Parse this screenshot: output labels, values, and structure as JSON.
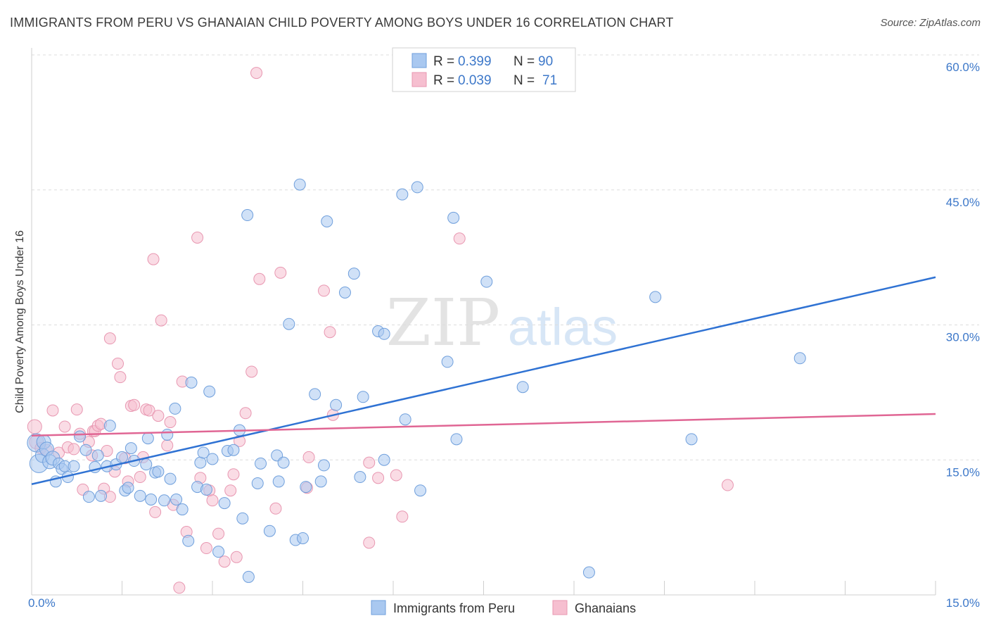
{
  "title": "IMMIGRANTS FROM PERU VS GHANAIAN CHILD POVERTY AMONG BOYS UNDER 16 CORRELATION CHART",
  "source": "Source: ZipAtlas.com",
  "watermark": {
    "zip": "ZIP",
    "atlas": "atlas"
  },
  "legend_top": {
    "rows": [
      {
        "r_label": "R =",
        "r_value": "0.399",
        "n_label": "N =",
        "n_value": "90"
      },
      {
        "r_label": "R =",
        "r_value": "0.039",
        "n_label": "N =",
        "n_value": "71"
      }
    ]
  },
  "legend_bottom": {
    "series1": "Immigrants from Peru",
    "series2": "Ghanaians"
  },
  "colors": {
    "blue_fill": "#a9c8f0",
    "blue_stroke": "#6f9fdc",
    "blue_line": "#2f72d3",
    "pink_fill": "#f6bfd0",
    "pink_stroke": "#e897b1",
    "pink_line": "#e06694",
    "axis_label": "#3d78c9",
    "grid": "#dddddd"
  },
  "chart_data": {
    "type": "scatter",
    "title": "IMMIGRANTS FROM PERU VS GHANAIAN CHILD POVERTY AMONG BOYS UNDER 16 CORRELATION CHART",
    "xlabel": "",
    "ylabel": "Child Poverty Among Boys Under 16",
    "xlim": [
      0,
      15
    ],
    "ylim": [
      0,
      60
    ],
    "x_tick_labels": [
      "0.0%",
      "15.0%"
    ],
    "y_ticks": [
      15,
      30,
      45,
      60
    ],
    "y_tick_labels": [
      "15.0%",
      "30.0%",
      "45.0%",
      "60.0%"
    ],
    "series": [
      {
        "name": "Immigrants from Peru",
        "r": 0.399,
        "n": 90,
        "trend": {
          "x": [
            0,
            15
          ],
          "y": [
            12.3,
            35.3
          ]
        },
        "points": [
          [
            0.08,
            16.9,
            3
          ],
          [
            0.12,
            14.6,
            3
          ],
          [
            0.18,
            15.5,
            2
          ],
          [
            0.2,
            17.0,
            2
          ],
          [
            0.25,
            16.2,
            2
          ],
          [
            0.3,
            14.8,
            2
          ],
          [
            0.35,
            15.2,
            2
          ],
          [
            0.4,
            12.6,
            1
          ],
          [
            0.45,
            14.6,
            1
          ],
          [
            0.5,
            14.0,
            1
          ],
          [
            0.55,
            14.3,
            1
          ],
          [
            0.6,
            13.1,
            1
          ],
          [
            0.7,
            14.3,
            1
          ],
          [
            0.8,
            17.6,
            1
          ],
          [
            0.9,
            16.1,
            1
          ],
          [
            0.95,
            10.9,
            1
          ],
          [
            1.05,
            14.2,
            1
          ],
          [
            1.1,
            15.5,
            1
          ],
          [
            1.15,
            11.0,
            1
          ],
          [
            1.25,
            14.3,
            1
          ],
          [
            1.3,
            18.8,
            1
          ],
          [
            1.4,
            14.5,
            1
          ],
          [
            1.5,
            15.3,
            1
          ],
          [
            1.55,
            11.6,
            1
          ],
          [
            1.6,
            11.9,
            1
          ],
          [
            1.65,
            16.3,
            1
          ],
          [
            1.7,
            14.9,
            1
          ],
          [
            1.8,
            11.0,
            1
          ],
          [
            1.9,
            14.5,
            1
          ],
          [
            1.93,
            17.4,
            1
          ],
          [
            1.98,
            10.6,
            1
          ],
          [
            2.05,
            13.6,
            1
          ],
          [
            2.1,
            13.7,
            1
          ],
          [
            2.2,
            10.5,
            1
          ],
          [
            2.25,
            17.8,
            1
          ],
          [
            2.3,
            12.9,
            1
          ],
          [
            2.38,
            20.7,
            1
          ],
          [
            2.4,
            10.6,
            1
          ],
          [
            2.5,
            9.5,
            1
          ],
          [
            2.6,
            6.0,
            1
          ],
          [
            2.65,
            23.6,
            1
          ],
          [
            2.75,
            12.0,
            1
          ],
          [
            2.8,
            14.7,
            1
          ],
          [
            2.85,
            15.8,
            1
          ],
          [
            2.9,
            11.7,
            1
          ],
          [
            2.95,
            22.6,
            1
          ],
          [
            3.0,
            15.1,
            1
          ],
          [
            3.1,
            4.8,
            1
          ],
          [
            3.2,
            10.2,
            1
          ],
          [
            3.25,
            16.0,
            1
          ],
          [
            3.35,
            16.1,
            1
          ],
          [
            3.45,
            18.3,
            1
          ],
          [
            3.5,
            8.5,
            1
          ],
          [
            3.58,
            42.2,
            1
          ],
          [
            3.6,
            2.0,
            1
          ],
          [
            3.75,
            12.4,
            1
          ],
          [
            3.8,
            14.6,
            1
          ],
          [
            3.95,
            7.1,
            1
          ],
          [
            4.07,
            15.5,
            1
          ],
          [
            4.1,
            12.6,
            1
          ],
          [
            4.18,
            14.7,
            1
          ],
          [
            4.27,
            30.1,
            1
          ],
          [
            4.38,
            6.1,
            1
          ],
          [
            4.45,
            45.6,
            1
          ],
          [
            4.5,
            6.3,
            1
          ],
          [
            4.55,
            12.0,
            1
          ],
          [
            4.7,
            22.3,
            1
          ],
          [
            4.8,
            12.6,
            1
          ],
          [
            4.85,
            14.4,
            1
          ],
          [
            4.9,
            41.5,
            1
          ],
          [
            5.05,
            21.1,
            1
          ],
          [
            5.2,
            33.6,
            1
          ],
          [
            5.35,
            35.7,
            1
          ],
          [
            5.45,
            13.1,
            1
          ],
          [
            5.5,
            22.0,
            1
          ],
          [
            5.75,
            29.3,
            1
          ],
          [
            5.85,
            29.0,
            1
          ],
          [
            5.85,
            15.0,
            1
          ],
          [
            6.15,
            44.5,
            1
          ],
          [
            6.2,
            19.5,
            1
          ],
          [
            6.4,
            45.3,
            1
          ],
          [
            6.45,
            11.6,
            1
          ],
          [
            6.9,
            25.9,
            1
          ],
          [
            7.0,
            41.9,
            1
          ],
          [
            7.05,
            17.3,
            1
          ],
          [
            7.55,
            34.8,
            1
          ],
          [
            8.15,
            23.1,
            1
          ],
          [
            9.25,
            2.5,
            1
          ],
          [
            10.35,
            33.1,
            1
          ],
          [
            10.95,
            17.3,
            1
          ],
          [
            12.75,
            26.3,
            1
          ]
        ]
      },
      {
        "name": "Ghanaians",
        "r": 0.039,
        "n": 71,
        "trend": {
          "x": [
            0,
            15
          ],
          "y": [
            17.7,
            20.1
          ]
        },
        "points": [
          [
            0.05,
            18.7,
            2
          ],
          [
            0.08,
            17.0,
            2
          ],
          [
            0.15,
            16.3,
            1
          ],
          [
            0.25,
            16.1,
            1
          ],
          [
            0.35,
            20.5,
            1
          ],
          [
            0.45,
            15.8,
            1
          ],
          [
            0.55,
            18.7,
            1
          ],
          [
            0.6,
            16.4,
            1
          ],
          [
            0.7,
            16.2,
            1
          ],
          [
            0.75,
            20.6,
            1
          ],
          [
            0.8,
            17.9,
            1
          ],
          [
            0.85,
            11.7,
            1
          ],
          [
            0.95,
            17.0,
            1
          ],
          [
            1.0,
            15.5,
            1
          ],
          [
            1.02,
            18.2,
            1
          ],
          [
            1.05,
            18.2,
            1
          ],
          [
            1.1,
            18.8,
            1
          ],
          [
            1.15,
            19.0,
            1
          ],
          [
            1.2,
            11.8,
            1
          ],
          [
            1.25,
            16.0,
            1
          ],
          [
            1.3,
            10.9,
            1
          ],
          [
            1.3,
            28.5,
            1
          ],
          [
            1.38,
            13.7,
            1
          ],
          [
            1.43,
            25.7,
            1
          ],
          [
            1.47,
            24.2,
            1
          ],
          [
            1.55,
            15.2,
            1
          ],
          [
            1.6,
            12.6,
            1
          ],
          [
            1.65,
            21.0,
            1
          ],
          [
            1.7,
            21.1,
            1
          ],
          [
            1.8,
            13.1,
            1
          ],
          [
            1.85,
            15.3,
            1
          ],
          [
            1.9,
            20.6,
            1
          ],
          [
            1.95,
            20.5,
            1
          ],
          [
            2.02,
            37.3,
            1
          ],
          [
            2.05,
            9.2,
            1
          ],
          [
            2.1,
            19.9,
            1
          ],
          [
            2.15,
            30.5,
            1
          ],
          [
            2.25,
            16.6,
            1
          ],
          [
            2.3,
            19.2,
            1
          ],
          [
            2.35,
            10.0,
            1
          ],
          [
            2.45,
            0.8,
            1
          ],
          [
            2.5,
            23.7,
            1
          ],
          [
            2.57,
            7.0,
            1
          ],
          [
            2.75,
            39.7,
            1
          ],
          [
            2.8,
            13.0,
            1
          ],
          [
            2.9,
            5.2,
            1
          ],
          [
            2.95,
            11.6,
            1
          ],
          [
            3.0,
            10.5,
            1
          ],
          [
            3.1,
            6.8,
            1
          ],
          [
            3.2,
            3.7,
            1
          ],
          [
            3.3,
            11.6,
            1
          ],
          [
            3.35,
            13.4,
            1
          ],
          [
            3.4,
            4.2,
            1
          ],
          [
            3.45,
            17.1,
            1
          ],
          [
            3.55,
            20.2,
            1
          ],
          [
            3.65,
            24.8,
            1
          ],
          [
            3.73,
            58.0,
            1
          ],
          [
            3.78,
            35.1,
            1
          ],
          [
            4.05,
            9.6,
            1
          ],
          [
            4.13,
            35.8,
            1
          ],
          [
            4.57,
            11.9,
            1
          ],
          [
            4.6,
            15.3,
            1
          ],
          [
            4.85,
            33.8,
            1
          ],
          [
            4.95,
            29.2,
            1
          ],
          [
            5.0,
            20.0,
            1
          ],
          [
            5.6,
            14.7,
            1
          ],
          [
            5.75,
            13.0,
            1
          ],
          [
            5.6,
            5.8,
            1
          ],
          [
            6.05,
            13.3,
            1
          ],
          [
            6.15,
            8.7,
            1
          ],
          [
            7.1,
            39.6,
            1
          ],
          [
            11.55,
            12.2,
            1
          ]
        ]
      }
    ]
  }
}
